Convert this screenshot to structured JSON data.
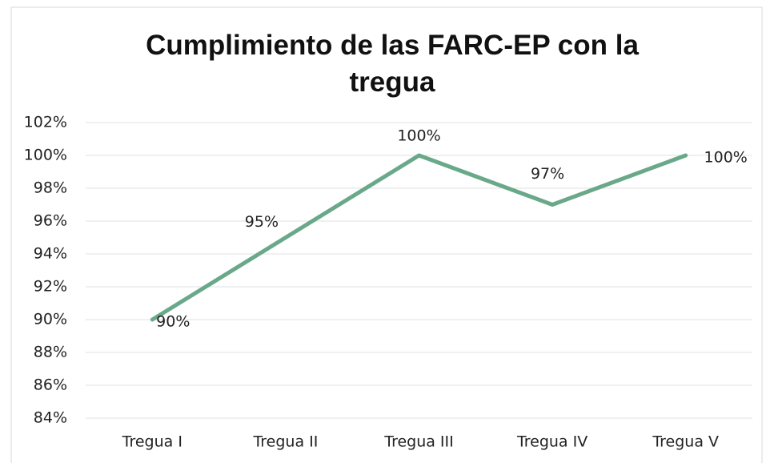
{
  "chart_data": {
    "type": "line",
    "title": "Cumplimiento de las FARC-EP con la tregua",
    "categories": [
      "Tregua I",
      "Tregua II",
      "Tregua III",
      "Tregua IV",
      "Tregua V"
    ],
    "values": [
      90,
      95,
      100,
      97,
      100
    ],
    "value_labels": [
      "90%",
      "95%",
      "100%",
      "97%",
      "100%"
    ],
    "color": "#6aa88a",
    "ylim": [
      84,
      102
    ],
    "yticks": [
      {
        "value": 84,
        "label": "84%"
      },
      {
        "value": 86,
        "label": "86%"
      },
      {
        "value": 88,
        "label": "88%"
      },
      {
        "value": 90,
        "label": "90%"
      },
      {
        "value": 92,
        "label": "92%"
      },
      {
        "value": 94,
        "label": "94%"
      },
      {
        "value": 96,
        "label": "96%"
      },
      {
        "value": 98,
        "label": "98%"
      },
      {
        "value": 100,
        "label": "100%"
      },
      {
        "value": 102,
        "label": "102%"
      }
    ],
    "grid": true
  }
}
